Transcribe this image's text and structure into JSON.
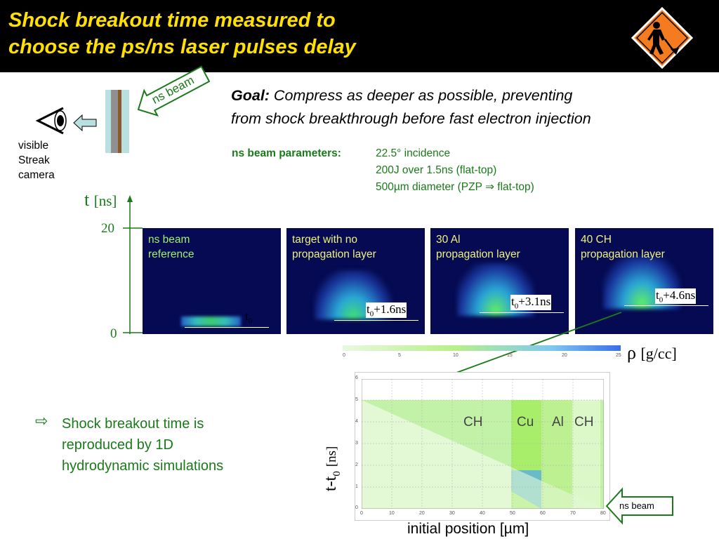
{
  "header": {
    "title_lines": [
      "Shock breakout time measured to",
      "choose the ps/ns laser pulses delay"
    ],
    "warning_sign_icon": "construction-worker-sign-icon"
  },
  "setup": {
    "camera_label_lines": [
      "visible",
      "Streak",
      "camera"
    ],
    "beam_arrow_label": "ns beam"
  },
  "goal": {
    "label": "Goal:",
    "text_line1": " Compress as deeper as possible, preventing",
    "text_line2": "from shock breakthrough before fast electron injection"
  },
  "beam_params": {
    "label": "ns beam parameters:",
    "lines": [
      "22.5° incidence",
      "200J over 1.5ns (flat-top)",
      "500µm diameter (PZP",
      "flat-top)"
    ],
    "arrow_symbol": "⇒"
  },
  "time_axis": {
    "label": "t",
    "unit": "[ns]",
    "ticks": [
      "20",
      "0"
    ]
  },
  "panels": [
    {
      "label_lines": [
        "ns beam",
        "reference"
      ],
      "time_prefix": "t",
      "time_sub": "0",
      "time_suffix": ""
    },
    {
      "label_lines": [
        "target with no",
        "propagation layer"
      ],
      "time_prefix": "t",
      "time_sub": "0",
      "time_suffix": "+1.6ns"
    },
    {
      "label_lines": [
        "30 Al",
        "propagation layer"
      ],
      "time_prefix": "t",
      "time_sub": "0",
      "time_suffix": "+3.1ns"
    },
    {
      "label_lines": [
        "40 CH",
        "propagation layer"
      ],
      "time_prefix": "t",
      "time_sub": "0",
      "time_suffix": "+4.6ns"
    }
  ],
  "colorbar": {
    "ticks": [
      "0",
      "5",
      "10",
      "15",
      "20",
      "25"
    ],
    "label_symbol": "ρ",
    "label_unit": "[g/cc]"
  },
  "simulation": {
    "y_ticks": [
      "6",
      "5",
      "4",
      "3",
      "2",
      "1",
      "0"
    ],
    "x_ticks": [
      "0",
      "10",
      "20",
      "30",
      "40",
      "50",
      "60",
      "70",
      "80"
    ],
    "ylabel_main": "t-t",
    "ylabel_sub": "0",
    "ylabel_unit": "[ns]",
    "xlabel": "initial position [µm]",
    "layers": [
      "CH",
      "Cu",
      "Al",
      "CH"
    ],
    "beam_arrow_label": "ns beam"
  },
  "conclusion": {
    "arrow_symbol": "⇨",
    "lines": [
      "Shock breakout time is",
      "reproduced by 1D",
      "hydrodynamic simulations"
    ]
  },
  "colors": {
    "title": "#ffe000",
    "text_green": "#1a7a1a",
    "panel_bg": "#050a52",
    "sim_light_green": "#d9f7c8",
    "sim_green": "#a8f070"
  }
}
